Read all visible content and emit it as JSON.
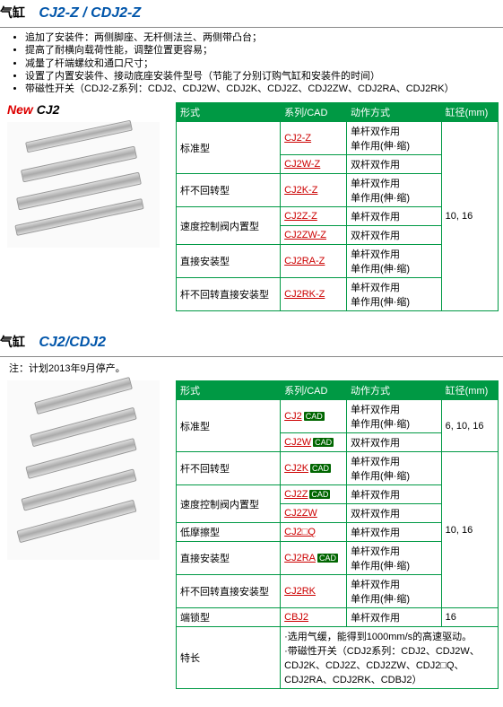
{
  "section1": {
    "title_label": "气缸",
    "title_model": "CJ2-Z / CDJ2-Z",
    "title_label_color": "#000",
    "title_model_color": "#0055aa",
    "bullets": [
      "追加了安装件：两侧脚座、无杆侧法兰、两侧带凸台；",
      "提高了耐横向载荷性能，调整位置更容易；",
      "减量了杆端螺纹和通口尺寸；",
      "设置了内置安装件、接动底座安装件型号（节能了分别订购气缸和安装件的时间）",
      "带磁性开关（CDJ2-Z系列：CDJ2、CDJ2W、CDJ2K、CDJ2Z、CDJ2ZW、CDJ2RA、CDJ2RK）"
    ],
    "new_badge_prefix": "New",
    "new_badge_model": "CJ2",
    "headers": [
      "形式",
      "系列/CAD",
      "动作方式",
      "缸径(mm)"
    ],
    "bore": "10, 16",
    "rows": [
      {
        "type": "标准型",
        "span": 2,
        "series": [
          {
            "t": "CJ2-Z"
          },
          {
            "t": "CJ2W-Z"
          }
        ],
        "action": [
          "单杆双作用\n单作用(伸·缩)",
          "双杆双作用"
        ]
      },
      {
        "type": "杆不回转型",
        "span": 1,
        "series": [
          {
            "t": "CJ2K-Z"
          }
        ],
        "action": [
          "单杆双作用\n单作用(伸·缩)"
        ]
      },
      {
        "type": "速度控制阀内置型",
        "span": 2,
        "series": [
          {
            "t": "CJ2Z-Z"
          },
          {
            "t": "CJ2ZW-Z"
          }
        ],
        "action": [
          "单杆双作用",
          "双杆双作用"
        ]
      },
      {
        "type": "直接安装型",
        "span": 1,
        "series": [
          {
            "t": "CJ2RA-Z"
          }
        ],
        "action": [
          "单杆双作用\n单作用(伸·缩)"
        ]
      },
      {
        "type": "杆不回转直接安装型",
        "span": 1,
        "series": [
          {
            "t": "CJ2RK-Z"
          }
        ],
        "action": [
          "单杆双作用\n单作用(伸·缩)"
        ]
      }
    ]
  },
  "section2": {
    "title_label": "气缸",
    "title_model": "CJ2/CDJ2",
    "title_label_color": "#000",
    "title_model_color": "#0055aa",
    "note": "注：计划2013年9月停产。",
    "headers": [
      "形式",
      "系列/CAD",
      "动作方式",
      "缸径(mm)"
    ],
    "rows": [
      {
        "type": "标准型",
        "span": 2,
        "series": [
          {
            "t": "CJ2",
            "cad": true
          },
          {
            "t": "CJ2W",
            "cad": true
          }
        ],
        "action": [
          "单杆双作用\n单作用(伸·缩)",
          "双杆双作用"
        ],
        "bore": "6, 10, 16",
        "borespan": 2
      },
      {
        "type": "杆不回转型",
        "span": 1,
        "series": [
          {
            "t": "CJ2K",
            "cad": true
          }
        ],
        "action": [
          "单杆双作用\n单作用(伸·缩)"
        ],
        "bore": "10, 16",
        "borespan": 6
      },
      {
        "type": "速度控制阀内置型",
        "span": 2,
        "series": [
          {
            "t": "CJ2Z",
            "cad": true
          },
          {
            "t": "CJ2ZW"
          }
        ],
        "action": [
          "单杆双作用",
          "双杆双作用"
        ]
      },
      {
        "type": "低摩擦型",
        "span": 1,
        "series": [
          {
            "t": "CJ2□Q"
          }
        ],
        "action": [
          "单杆双作用"
        ]
      },
      {
        "type": "直接安装型",
        "span": 1,
        "series": [
          {
            "t": "CJ2RA",
            "cad": true
          }
        ],
        "action": [
          "单杆双作用\n单作用(伸·缩)"
        ]
      },
      {
        "type": "杆不回转直接安装型",
        "span": 1,
        "series": [
          {
            "t": "CJ2RK"
          }
        ],
        "action": [
          "单杆双作用\n单作用(伸·缩)"
        ]
      },
      {
        "type": "端锁型",
        "span": 1,
        "series": [
          {
            "t": "CBJ2"
          }
        ],
        "action": [
          "单杆双作用"
        ],
        "bore": "16",
        "borespan": 1
      }
    ],
    "feature_label": "特长",
    "feature_text": "·选用气缓，能得到1000mm/s的高速驱动。\n·带磁性开关（CDJ2系列：CDJ2、CDJ2W、CDJ2K、CDJ2Z、CDJ2ZW、CDJ2□Q、CDJ2RA、CDJ2RK、CDBJ2）"
  }
}
